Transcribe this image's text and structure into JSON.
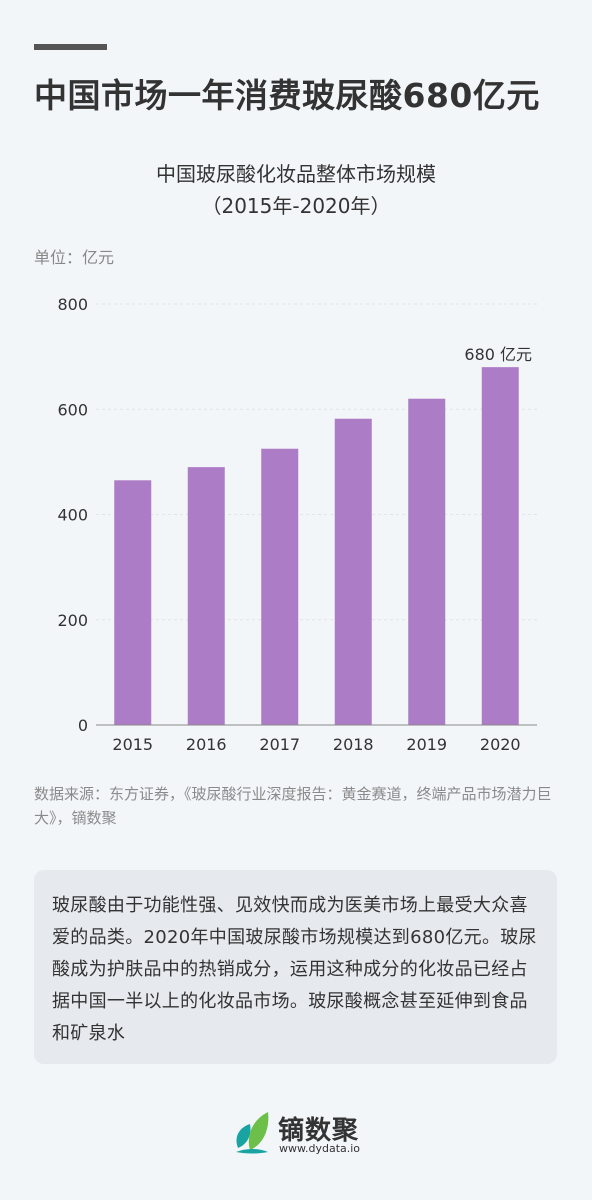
{
  "headline": "中国市场一年消费玻尿酸680亿元",
  "chart_data": {
    "type": "bar",
    "title": "中国玻尿酸化妆品整体市场规模",
    "subtitle": "（2015年-2020年）",
    "unit_label": "单位：亿元",
    "categories": [
      "2015",
      "2016",
      "2017",
      "2018",
      "2019",
      "2020"
    ],
    "values": [
      465,
      490,
      525,
      582,
      620,
      680
    ],
    "ylim": [
      0,
      800
    ],
    "yticks": [
      0,
      200,
      400,
      600,
      800
    ],
    "grid": true,
    "bar_color": "#ad7cc6",
    "annotations": [
      {
        "category": "2020",
        "text": "680 亿元"
      }
    ]
  },
  "source": "数据来源：东方证券，《玻尿酸行业深度报告：黄金赛道，终端产品市场潜力巨大》，镝数聚",
  "summary": "玻尿酸由于功能性强、见效快而成为医美市场上最受大众喜爱的品类。2020年中国玻尿酸市场规模达到680亿元。玻尿酸成为护肤品中的热销成分，运用这种成分的化妆品已经占据中国一半以上的化妆品市场。玻尿酸概念甚至延伸到食品和矿泉水",
  "brand": {
    "name": "镝数聚",
    "url": "www.dydata.io",
    "logo_icon": "leaf-logo-icon",
    "colors": [
      "#1aa3a3",
      "#6cc04a"
    ]
  }
}
